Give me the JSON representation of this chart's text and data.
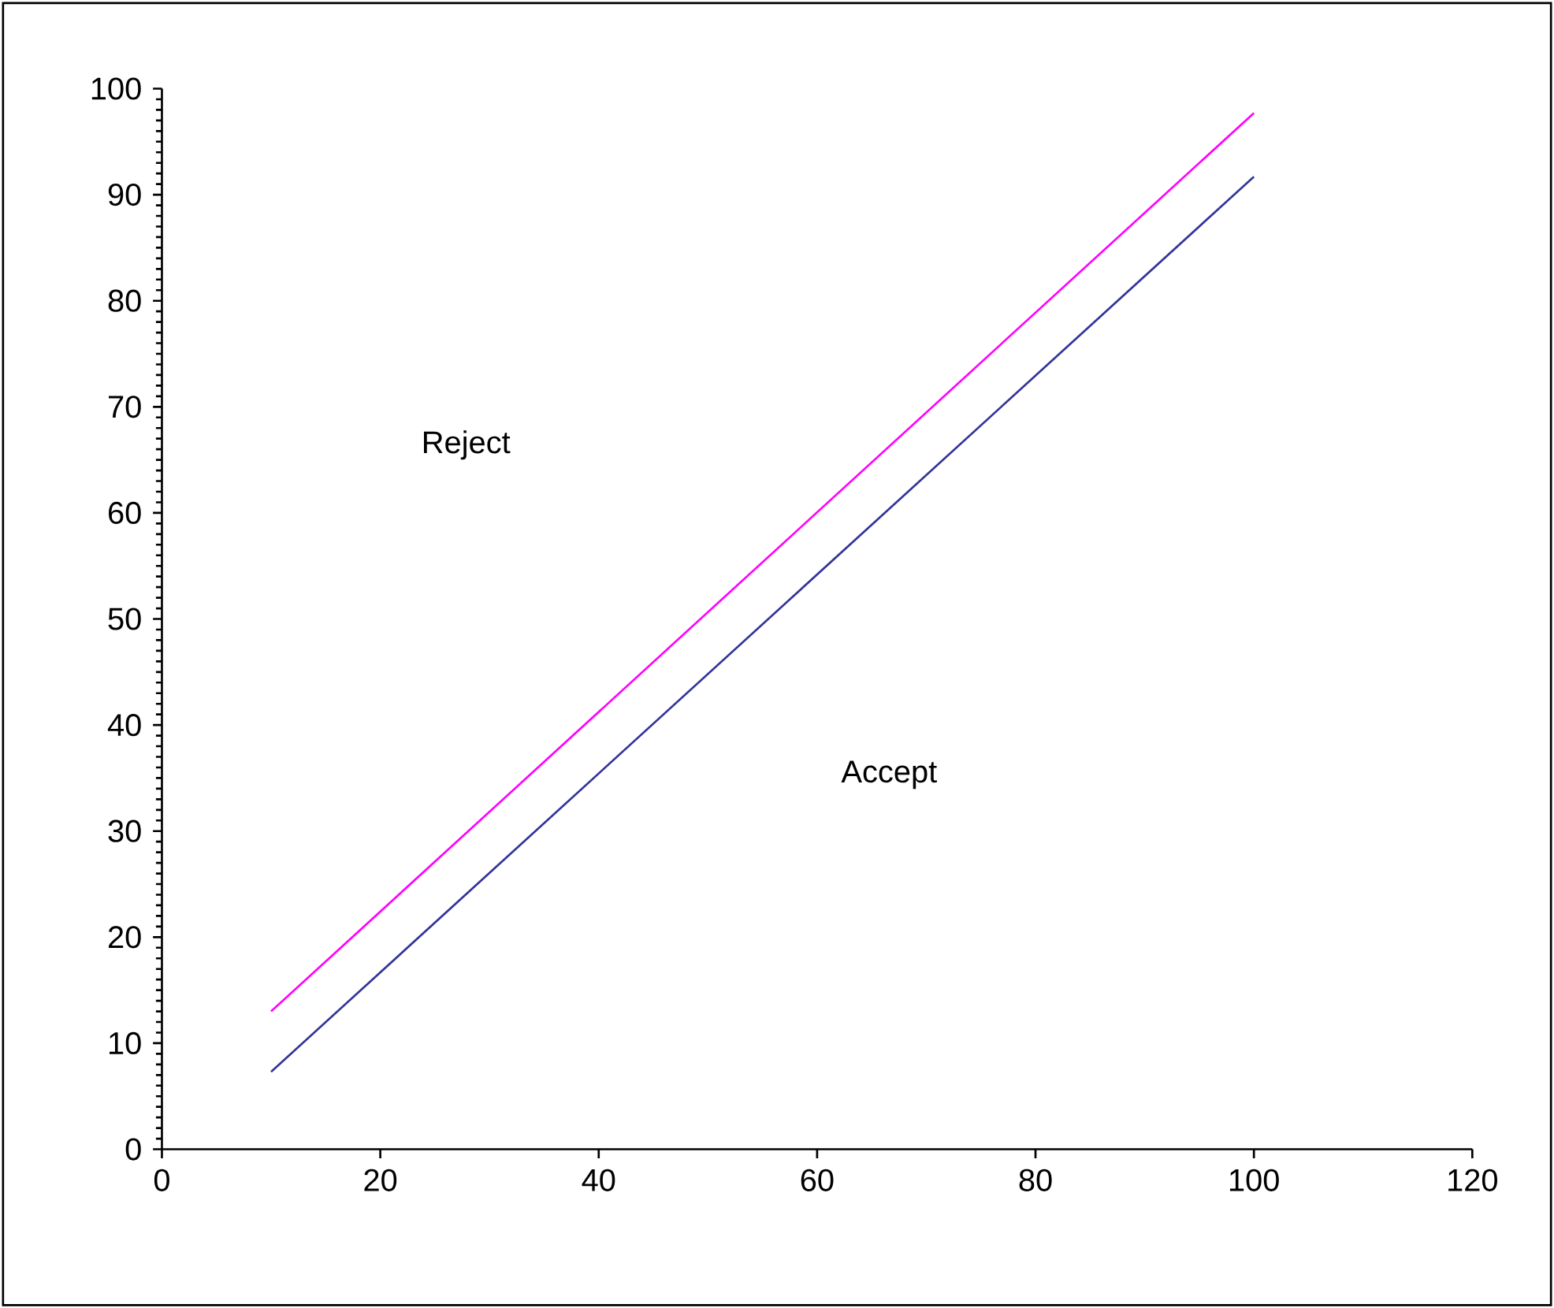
{
  "chart_data": {
    "type": "line",
    "x": [
      10,
      100
    ],
    "series": [
      {
        "color": "#ff00ff",
        "values": [
          13.0,
          97.7
        ]
      },
      {
        "color": "#333399",
        "values": [
          7.3,
          91.7
        ]
      }
    ],
    "xlim": [
      0,
      120
    ],
    "xticks": [
      0,
      20,
      40,
      60,
      80,
      100,
      120
    ],
    "ylim": [
      0,
      100
    ],
    "yticks": [
      0,
      10,
      20,
      30,
      40,
      50,
      60,
      70,
      80,
      90,
      100
    ],
    "grid": false,
    "marker": "none",
    "line_style": "solid",
    "annotations": [
      "Reject",
      "Accept"
    ]
  }
}
